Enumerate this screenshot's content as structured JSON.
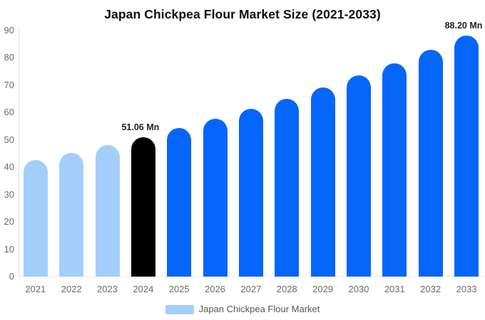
{
  "title": "Japan Chickpea Flour Market Size (2021-2033)",
  "legend": {
    "label": "Japan Chickpea Flour Market",
    "swatch_color": "#A3CEFA"
  },
  "colors": {
    "historical": "#A3CEFA",
    "base_year": "#000000",
    "forecast": "#0666FA",
    "axis_line": "#E0E0E0",
    "grid_line": "#E8E8E8",
    "tick_text": "#6B6B6B",
    "value_label_text": "#1F1F1F",
    "legend_text": "#565656",
    "title_text": "#0F0F0F",
    "background": "#FFFFFF"
  },
  "chart_data": {
    "type": "bar",
    "title": "Japan Chickpea Flour Market Size (2021-2033)",
    "series_name": "Japan Chickpea Flour Market",
    "unit": "Mn",
    "categories": [
      "2021",
      "2022",
      "2023",
      "2024",
      "2025",
      "2026",
      "2027",
      "2028",
      "2029",
      "2030",
      "2031",
      "2032",
      "2033"
    ],
    "values": [
      42.6,
      45.2,
      48.1,
      51.06,
      54.3,
      57.7,
      61.3,
      65.1,
      69.2,
      73.5,
      78.1,
      83.0,
      88.2
    ],
    "roles": [
      "historical",
      "historical",
      "historical",
      "base_year",
      "forecast",
      "forecast",
      "forecast",
      "forecast",
      "forecast",
      "forecast",
      "forecast",
      "forecast",
      "forecast"
    ],
    "value_labels": [
      "",
      "",
      "",
      "51.06 Mn",
      "",
      "",
      "",
      "",
      "",
      "",
      "",
      "",
      "88.20 Mn"
    ],
    "ylim": [
      0,
      90
    ],
    "yticks": [
      0,
      10,
      20,
      30,
      40,
      50,
      60,
      70,
      80,
      90
    ],
    "grid": false,
    "legend_position": "bottom"
  }
}
